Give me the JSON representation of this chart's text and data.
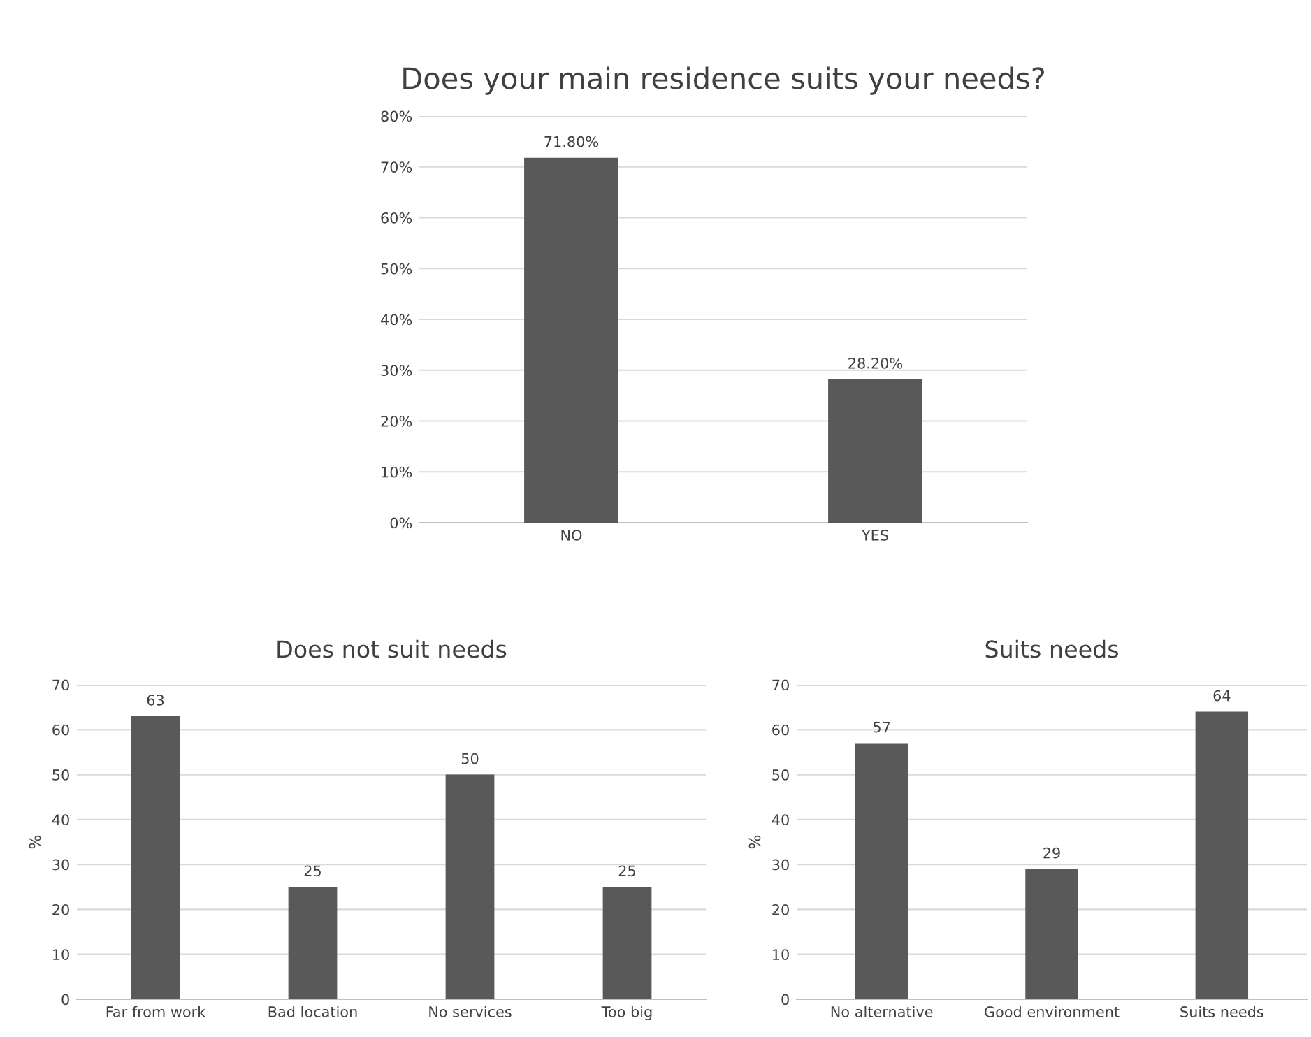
{
  "chart_data": [
    {
      "type": "bar",
      "title": "Does your main residence suits your needs?",
      "categories": [
        "NO",
        "YES"
      ],
      "values": [
        71.8,
        28.2
      ],
      "value_labels": [
        "71.80%",
        "28.20%"
      ],
      "color": "#595959",
      "ylim": [
        0,
        80
      ],
      "yticks": [
        {
          "value": 0,
          "label": "0%"
        },
        {
          "value": 10,
          "label": "10%"
        },
        {
          "value": 20,
          "label": "20%"
        },
        {
          "value": 30,
          "label": "30%"
        },
        {
          "value": 40,
          "label": "40%"
        },
        {
          "value": 50,
          "label": "50%"
        },
        {
          "value": 60,
          "label": "60%"
        },
        {
          "value": 70,
          "label": "70%"
        },
        {
          "value": 80,
          "label": "80%"
        }
      ],
      "grid": "y",
      "legend": false
    },
    {
      "type": "bar",
      "title": "Does not suit needs",
      "ylabel": "%",
      "categories": [
        "Far from work",
        "Bad location",
        "No services",
        "Too big"
      ],
      "values": [
        63,
        25,
        50,
        25
      ],
      "data_labels": true,
      "color": "#595959",
      "ylim": [
        0,
        70
      ],
      "yticks": [
        0,
        10,
        20,
        30,
        40,
        50,
        60,
        70
      ],
      "grid": "y",
      "legend": false
    },
    {
      "type": "bar",
      "title": "Suits needs",
      "ylabel": "%",
      "categories": [
        "No alternative",
        "Good environment",
        "Suits needs"
      ],
      "values": [
        57,
        29,
        64
      ],
      "data_labels": true,
      "color": "#595959",
      "ylim": [
        0,
        70
      ],
      "yticks": [
        0,
        10,
        20,
        30,
        40,
        50,
        60,
        70
      ],
      "grid": "y",
      "legend": false
    }
  ]
}
